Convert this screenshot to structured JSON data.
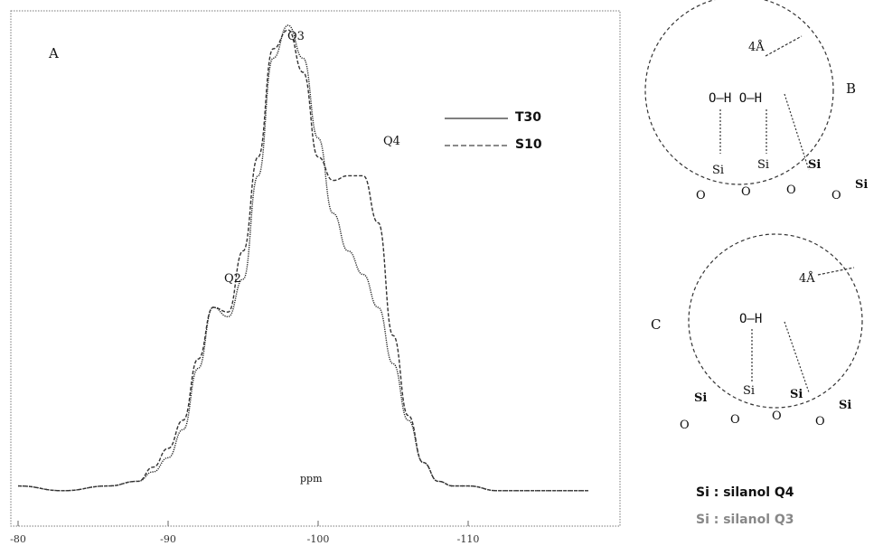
{
  "panel_a": {
    "letter": "A",
    "peak_labels": {
      "q3": "Q3",
      "q4": "Q4",
      "q2": "Q2"
    },
    "center_label": "ppm",
    "legend": [
      {
        "name": "T30",
        "style": "solid"
      },
      {
        "name": "S10",
        "style": "dashed"
      }
    ],
    "tick_labels": [
      "-80",
      "-90",
      "-100",
      "-110"
    ]
  },
  "panel_b": {
    "letter": "B",
    "distance": "4Å",
    "groups": "O–H  O–H",
    "si_atoms": [
      "Si",
      "Si",
      "Si",
      "Si"
    ],
    "oxygens": [
      "O",
      "O",
      "O",
      "O"
    ]
  },
  "panel_c": {
    "letter": "C",
    "distance": "4Å",
    "group": "O–H",
    "si_atoms": [
      "Si",
      "Si",
      "Si",
      "Si"
    ],
    "oxygens": [
      "O",
      "O",
      "O",
      "O"
    ]
  },
  "key": {
    "q4": "Si : silanol Q4",
    "q3": "Si : silanol Q3"
  },
  "chart_data": {
    "type": "line",
    "xlabel": "ppm",
    "x_tick_labels": [
      "-80",
      "-90",
      "-100",
      "-110"
    ],
    "series": [
      {
        "name": "T30",
        "style": "solid",
        "x": [
          -80,
          -83,
          -86,
          -88,
          -89,
          -90,
          -91,
          -92,
          -93,
          -94,
          -95,
          -96,
          -97,
          -98,
          -99,
          -100,
          -101,
          -102,
          -103,
          -104,
          -105,
          -106,
          -107,
          -108,
          -109,
          -110,
          -112,
          -115,
          -118
        ],
        "y": [
          0.02,
          0.01,
          0.02,
          0.03,
          0.05,
          0.08,
          0.14,
          0.27,
          0.4,
          0.38,
          0.46,
          0.68,
          0.93,
          1.0,
          0.93,
          0.76,
          0.6,
          0.52,
          0.47,
          0.4,
          0.28,
          0.16,
          0.07,
          0.03,
          0.02,
          0.02,
          0.01,
          0.01,
          0.01
        ]
      },
      {
        "name": "S10",
        "style": "dashed",
        "x": [
          -80,
          -83,
          -86,
          -88,
          -89,
          -90,
          -91,
          -92,
          -93,
          -94,
          -95,
          -96,
          -97,
          -98,
          -99,
          -100,
          -101,
          -102,
          -103,
          -104,
          -105,
          -106,
          -107,
          -108,
          -109,
          -110,
          -112,
          -115,
          -118
        ],
        "y": [
          0.02,
          0.01,
          0.02,
          0.03,
          0.06,
          0.1,
          0.16,
          0.29,
          0.4,
          0.39,
          0.52,
          0.72,
          0.95,
          0.99,
          0.9,
          0.72,
          0.67,
          0.68,
          0.68,
          0.58,
          0.34,
          0.17,
          0.07,
          0.03,
          0.02,
          0.02,
          0.01,
          0.01,
          0.01
        ]
      }
    ]
  }
}
